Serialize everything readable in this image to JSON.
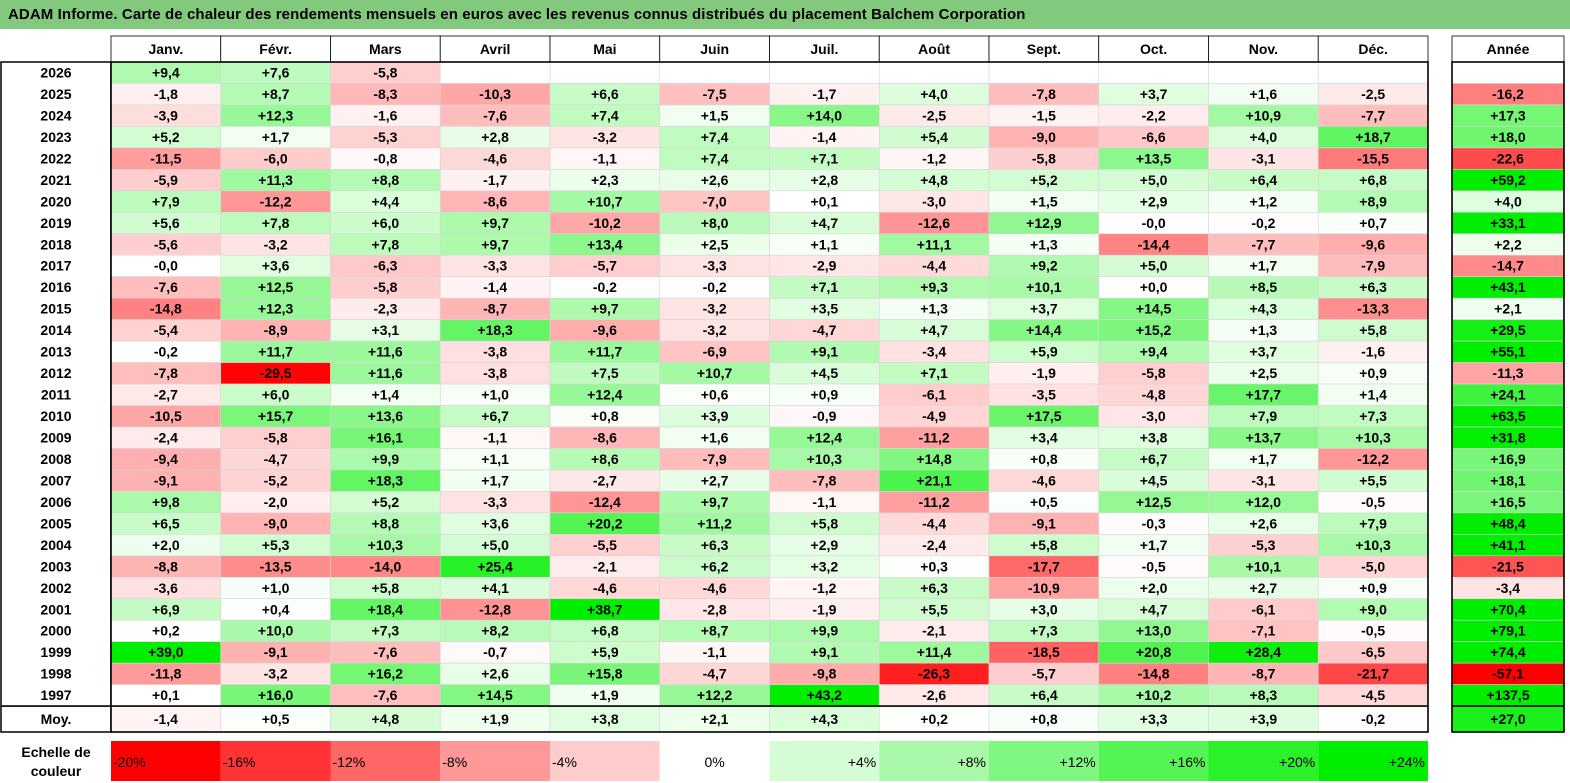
{
  "title": "ADAM Informe. Carte de chaleur des rendements mensuels en euros avec les revenus connus distribués du placement Balchem Corporation",
  "colors": {
    "title_bg": "#82c87d",
    "negative_max": "#ff0000",
    "neutral": "#ffffff",
    "positive_max": "#00ee00"
  },
  "chart_data": {
    "type": "heatmap",
    "title": "ADAM Informe. Carte de chaleur des rendements mensuels en euros avec les revenus connus distribués du placement Balchem Corporation",
    "columns": [
      "Janv.",
      "Févr.",
      "Mars",
      "Avril",
      "Mai",
      "Juin",
      "Juil.",
      "Août",
      "Sept.",
      "Oct.",
      "Nov.",
      "Déc."
    ],
    "year_header": "Année",
    "rows": [
      {
        "label": "2026",
        "values": [
          "+9,4",
          "+7,6",
          "-5,8",
          "",
          "",
          "",
          "",
          "",
          "",
          "",
          "",
          ""
        ],
        "year": ""
      },
      {
        "label": "2025",
        "values": [
          "-1,8",
          "+8,7",
          "-8,3",
          "-10,3",
          "+6,6",
          "-7,5",
          "-1,7",
          "+4,0",
          "-7,8",
          "+3,7",
          "+1,6",
          "-2,5"
        ],
        "year": "-16,2"
      },
      {
        "label": "2024",
        "values": [
          "-3,9",
          "+12,3",
          "-1,6",
          "-7,6",
          "+7,4",
          "+1,5",
          "+14,0",
          "-2,5",
          "-1,5",
          "-2,2",
          "+10,9",
          "-7,7"
        ],
        "year": "+17,3"
      },
      {
        "label": "2023",
        "values": [
          "+5,2",
          "+1,7",
          "-5,3",
          "+2,8",
          "-3,2",
          "+7,4",
          "-1,4",
          "+5,4",
          "-9,0",
          "-6,6",
          "+4,0",
          "+18,7"
        ],
        "year": "+18,0"
      },
      {
        "label": "2022",
        "values": [
          "-11,5",
          "-6,0",
          "-0,8",
          "-4,6",
          "-1,1",
          "+7,4",
          "+7,1",
          "-1,2",
          "-5,8",
          "+13,5",
          "-3,1",
          "-15,5"
        ],
        "year": "-22,6"
      },
      {
        "label": "2021",
        "values": [
          "-5,9",
          "+11,3",
          "+8,8",
          "-1,7",
          "+2,3",
          "+2,6",
          "+2,8",
          "+4,8",
          "+5,2",
          "+5,0",
          "+6,4",
          "+6,8"
        ],
        "year": "+59,2"
      },
      {
        "label": "2020",
        "values": [
          "+7,9",
          "-12,2",
          "+4,4",
          "-8,6",
          "+10,7",
          "-7,0",
          "+0,1",
          "-3,0",
          "+1,5",
          "+2,9",
          "+1,2",
          "+8,9"
        ],
        "year": "+4,0"
      },
      {
        "label": "2019",
        "values": [
          "+5,6",
          "+7,8",
          "+6,0",
          "+9,7",
          "-10,2",
          "+8,0",
          "+4,7",
          "-12,6",
          "+12,9",
          "-0,0",
          "-0,2",
          "+0,7"
        ],
        "year": "+33,1"
      },
      {
        "label": "2018",
        "values": [
          "-5,6",
          "-3,2",
          "+7,8",
          "+9,7",
          "+13,4",
          "+2,5",
          "+1,1",
          "+11,1",
          "+1,3",
          "-14,4",
          "-7,7",
          "-9,6"
        ],
        "year": "+2,2"
      },
      {
        "label": "2017",
        "values": [
          "-0,0",
          "+3,6",
          "-6,3",
          "-3,3",
          "-5,7",
          "-3,3",
          "-2,9",
          "-4,4",
          "+9,2",
          "+5,0",
          "+1,7",
          "-7,9"
        ],
        "year": "-14,7"
      },
      {
        "label": "2016",
        "values": [
          "-7,6",
          "+12,5",
          "-5,8",
          "-1,4",
          "-0,2",
          "-0,2",
          "+7,1",
          "+9,3",
          "+10,1",
          "+0,0",
          "+8,5",
          "+6,3"
        ],
        "year": "+43,1"
      },
      {
        "label": "2015",
        "values": [
          "-14,8",
          "+12,3",
          "-2,3",
          "-8,7",
          "+9,7",
          "-3,2",
          "+3,5",
          "+1,3",
          "+3,7",
          "+14,5",
          "+4,3",
          "-13,3"
        ],
        "year": "+2,1"
      },
      {
        "label": "2014",
        "values": [
          "-5,4",
          "-8,9",
          "+3,1",
          "+18,3",
          "-9,6",
          "-3,2",
          "-4,7",
          "+4,7",
          "+14,4",
          "+15,2",
          "+1,3",
          "+5,8"
        ],
        "year": "+29,5"
      },
      {
        "label": "2013",
        "values": [
          "-0,2",
          "+11,7",
          "+11,6",
          "-3,8",
          "+11,7",
          "-6,9",
          "+9,1",
          "-3,4",
          "+5,9",
          "+9,4",
          "+3,7",
          "-1,6"
        ],
        "year": "+55,1"
      },
      {
        "label": "2012",
        "values": [
          "-7,8",
          "-29,5",
          "+11,6",
          "-3,8",
          "+7,5",
          "+10,7",
          "+4,5",
          "+7,1",
          "-1,9",
          "-5,8",
          "+2,5",
          "+0,9"
        ],
        "year": "-11,3"
      },
      {
        "label": "2011",
        "values": [
          "-2,7",
          "+6,0",
          "+1,4",
          "+1,0",
          "+12,4",
          "+0,6",
          "+0,9",
          "-6,1",
          "-3,5",
          "-4,8",
          "+17,7",
          "+1,4"
        ],
        "year": "+24,1"
      },
      {
        "label": "2010",
        "values": [
          "-10,5",
          "+15,7",
          "+13,6",
          "+6,7",
          "+0,8",
          "+3,9",
          "-0,9",
          "-4,9",
          "+17,5",
          "-3,0",
          "+7,9",
          "+7,3"
        ],
        "year": "+63,5"
      },
      {
        "label": "2009",
        "values": [
          "-2,4",
          "-5,8",
          "+16,1",
          "-1,1",
          "-8,6",
          "+1,6",
          "+12,4",
          "-11,2",
          "+3,4",
          "+3,8",
          "+13,7",
          "+10,3"
        ],
        "year": "+31,8"
      },
      {
        "label": "2008",
        "values": [
          "-9,4",
          "-4,7",
          "+9,9",
          "+1,1",
          "+8,6",
          "-7,9",
          "+10,3",
          "+14,8",
          "+0,8",
          "+6,7",
          "+1,7",
          "-12,2"
        ],
        "year": "+16,9"
      },
      {
        "label": "2007",
        "values": [
          "-9,1",
          "-5,2",
          "+18,3",
          "+1,7",
          "-2,7",
          "+2,7",
          "-7,8",
          "+21,1",
          "-4,6",
          "+4,5",
          "-3,1",
          "+5,5"
        ],
        "year": "+18,1"
      },
      {
        "label": "2006",
        "values": [
          "+9,8",
          "-2,0",
          "+5,2",
          "-3,3",
          "-12,4",
          "+9,7",
          "-1,1",
          "-11,2",
          "+0,5",
          "+12,5",
          "+12,0",
          "-0,5"
        ],
        "year": "+16,5"
      },
      {
        "label": "2005",
        "values": [
          "+6,5",
          "-9,0",
          "+8,8",
          "+3,6",
          "+20,2",
          "+11,2",
          "+5,8",
          "-4,4",
          "-9,1",
          "-0,3",
          "+2,6",
          "+7,9"
        ],
        "year": "+48,4"
      },
      {
        "label": "2004",
        "values": [
          "+2,0",
          "+5,3",
          "+10,3",
          "+5,0",
          "-5,5",
          "+6,3",
          "+2,9",
          "-2,4",
          "+5,8",
          "+1,7",
          "-5,3",
          "+10,3"
        ],
        "year": "+41,1"
      },
      {
        "label": "2003",
        "values": [
          "-8,8",
          "-13,5",
          "-14,0",
          "+25,4",
          "-2,1",
          "+6,2",
          "+3,2",
          "+0,3",
          "-17,7",
          "-0,5",
          "+10,1",
          "-5,0"
        ],
        "year": "-21,5"
      },
      {
        "label": "2002",
        "values": [
          "-3,6",
          "+1,0",
          "+5,8",
          "+4,1",
          "-4,6",
          "-4,6",
          "-1,2",
          "+6,3",
          "-10,9",
          "+2,0",
          "+2,7",
          "+0,9"
        ],
        "year": "-3,4"
      },
      {
        "label": "2001",
        "values": [
          "+6,9",
          "+0,4",
          "+18,4",
          "-12,8",
          "+38,7",
          "-2,8",
          "-1,9",
          "+5,5",
          "+3,0",
          "+4,7",
          "-6,1",
          "+9,0"
        ],
        "year": "+70,4"
      },
      {
        "label": "2000",
        "values": [
          "+0,2",
          "+10,0",
          "+7,3",
          "+8,2",
          "+6,8",
          "+8,7",
          "+9,9",
          "-2,1",
          "+7,3",
          "+13,0",
          "-7,1",
          "-0,5"
        ],
        "year": "+79,1"
      },
      {
        "label": "1999",
        "values": [
          "+39,0",
          "-9,1",
          "-7,6",
          "-0,7",
          "+5,9",
          "-1,1",
          "+9,1",
          "+11,4",
          "-18,5",
          "+20,8",
          "+28,4",
          "-6,5"
        ],
        "year": "+74,4"
      },
      {
        "label": "1998",
        "values": [
          "-11,8",
          "-3,2",
          "+16,2",
          "+2,6",
          "+15,8",
          "-4,7",
          "-9,8",
          "-26,3",
          "-5,7",
          "-14,8",
          "-8,7",
          "-21,7"
        ],
        "year": "-57,1"
      },
      {
        "label": "1997",
        "values": [
          "+0,1",
          "+16,0",
          "-7,6",
          "+14,5",
          "+1,9",
          "+12,2",
          "+43,2",
          "-2,6",
          "+6,4",
          "+10,2",
          "+8,3",
          "-4,5"
        ],
        "year": "+137,5"
      }
    ],
    "average": {
      "label": "Moy.",
      "values": [
        "-1,4",
        "+0,5",
        "+4,8",
        "+1,9",
        "+3,8",
        "+2,1",
        "+4,3",
        "+0,2",
        "+0,8",
        "+3,3",
        "+3,9",
        "-0,2"
      ],
      "year": "+27,0"
    },
    "scale": {
      "label_line1": "Echelle de",
      "label_line2": "couleur",
      "steps": [
        "-20%",
        "-16%",
        "-12%",
        "-8%",
        "-4%",
        "0%",
        "+4%",
        "+8%",
        "+12%",
        "+16%",
        "+20%",
        "+24%"
      ]
    }
  }
}
